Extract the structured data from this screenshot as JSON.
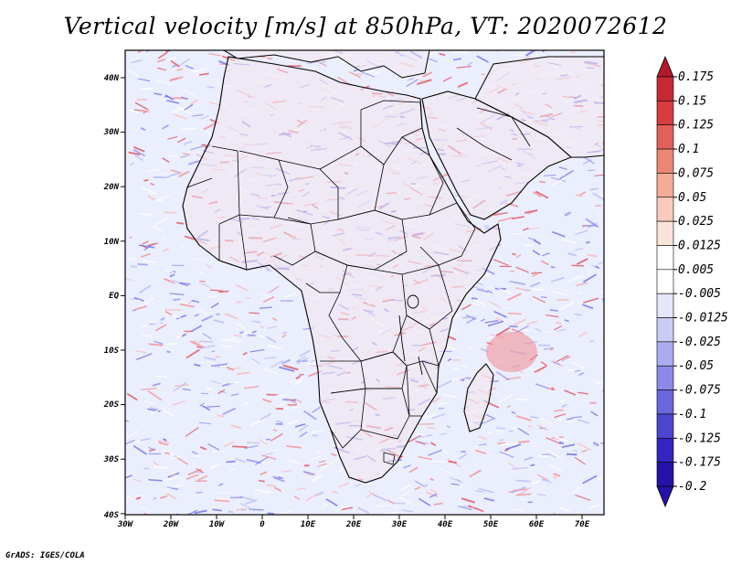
{
  "title": "Vertical velocity [m/s] at 850hPa, VT: 2020072612",
  "footer": "GrADS: IGES/COLA",
  "colors": {
    "strong_up": "#b2182b",
    "weak_up": "#f4a582",
    "near_zero": "#ffffff",
    "weak_down": "#a6a6f0",
    "strong_down": "#2b1cb0",
    "land": "#f3e6ee",
    "ocean": "#ebeefc",
    "border": "#000000"
  },
  "map": {
    "lon_range": [
      -30,
      75
    ],
    "lat_range": [
      -40,
      45
    ],
    "lat_labels": [
      "40N",
      "30N",
      "20N",
      "10N",
      "EQ",
      "10S",
      "20S",
      "30S",
      "40S"
    ],
    "lon_labels": [
      "30W",
      "20W",
      "10W",
      "0",
      "10E",
      "20E",
      "30E",
      "40E",
      "50E",
      "60E",
      "70E"
    ]
  },
  "colorbar": {
    "labels": [
      "0.175",
      "0.15",
      "0.125",
      "0.1",
      "0.075",
      "0.05",
      "0.025",
      "0.0125",
      "0.005",
      "-0.005",
      "-0.0125",
      "-0.025",
      "-0.05",
      "-0.075",
      "-0.1",
      "-0.125",
      "-0.175",
      "-0.2"
    ],
    "colors": [
      "#b2182b",
      "#c62a35",
      "#d73c3f",
      "#e3605a",
      "#ec8776",
      "#f4ab98",
      "#f9cabb",
      "#fce3da",
      "#ffffff",
      "#ffffff",
      "#e6e6fb",
      "#cbcbf6",
      "#ababef",
      "#8a8ae6",
      "#6a66db",
      "#4b45cf",
      "#3524bf",
      "#2612a6"
    ]
  }
}
